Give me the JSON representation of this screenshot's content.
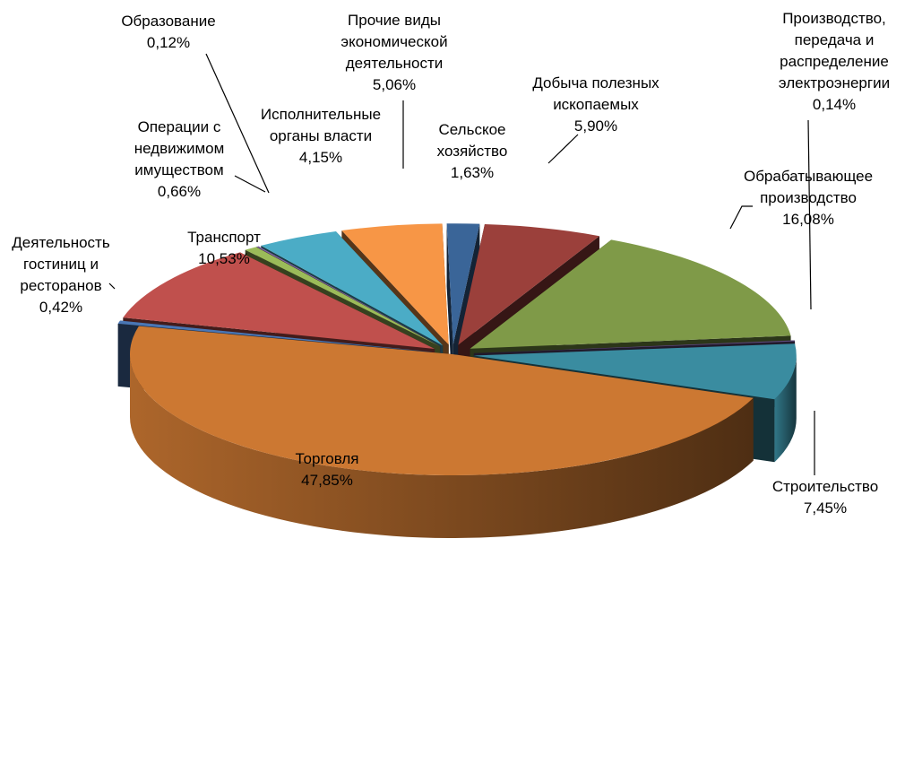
{
  "chart_data": {
    "type": "pie",
    "style": "3d-exploded",
    "slices": [
      {
        "name_lines": [
          "Сельское",
          "хозяйство"
        ],
        "value_label": "1,63%",
        "value": 1.63,
        "color": "#3a6598"
      },
      {
        "name_lines": [
          "Добыча полезных",
          "ископаемых"
        ],
        "value_label": "5,90%",
        "value": 5.9,
        "color": "#9b403b"
      },
      {
        "name_lines": [
          "Обрабатывающее",
          "производство"
        ],
        "value_label": "16,08%",
        "value": 16.08,
        "color": "#7f9a48"
      },
      {
        "name_lines": [
          "Производство,",
          "передача и",
          "распределение",
          "электроэнергии"
        ],
        "value_label": "0,14%",
        "value": 0.14,
        "color": "#5e4b7c"
      },
      {
        "name_lines": [
          "Строительство"
        ],
        "value_label": "7,45%",
        "value": 7.45,
        "color": "#3a8ca0"
      },
      {
        "name_lines": [
          "Торговля"
        ],
        "value_label": "47,85%",
        "value": 47.85,
        "color": "#cc7832"
      },
      {
        "name_lines": [
          "Деятельность",
          "гостиниц и",
          "ресторанов"
        ],
        "value_label": "0,42%",
        "value": 0.42,
        "color": "#4a76b4"
      },
      {
        "name_lines": [
          "Транспорт"
        ],
        "value_label": "10,53%",
        "value": 10.53,
        "color": "#c0504d"
      },
      {
        "name_lines": [
          "Операции с",
          "недвижимом",
          "имуществом"
        ],
        "value_label": "0,66%",
        "value": 0.66,
        "color": "#9bbb59"
      },
      {
        "name_lines": [
          "Образование"
        ],
        "value_label": "0,12%",
        "value": 0.12,
        "color": "#8064a2"
      },
      {
        "name_lines": [
          "Исполнительные",
          "органы власти"
        ],
        "value_label": "4,15%",
        "value": 4.15,
        "color": "#4bacc6"
      },
      {
        "name_lines": [
          "Прочие виды",
          "экономической",
          "деятельности"
        ],
        "value_label": "5,06%",
        "value": 5.06,
        "color": "#f79646"
      }
    ]
  }
}
